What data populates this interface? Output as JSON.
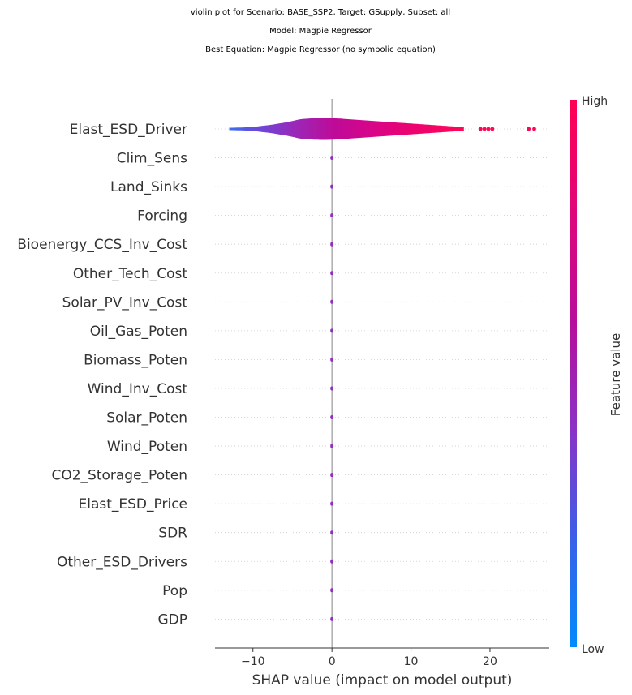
{
  "titles": [
    "violin plot for Scenario: BASE_SSP2, Target: GSupply, Subset: all",
    "Model: Magpie Regressor",
    "Best Equation: Magpie Regressor (no symbolic equation)"
  ],
  "chart_data": {
    "type": "violin",
    "xlabel": "SHAP value (impact on model output)",
    "ylabel": "",
    "xlim": [
      -14.8,
      27.5
    ],
    "xticks": [
      -10,
      0,
      10,
      20
    ],
    "xtick_labels": [
      "−10",
      "0",
      "10",
      "20"
    ],
    "grid": "dotted horizontal rows",
    "colorbar": {
      "label": "Feature value",
      "high_label": "High",
      "low_label": "Low",
      "colors": [
        "#008bfb",
        "#3b5fe8",
        "#8a32c5",
        "#b90c9a",
        "#e0067a",
        "#ff0052"
      ]
    },
    "features": [
      {
        "name": "Elast_ESD_Driver",
        "min": -13.0,
        "max": 16.7,
        "outliers": [
          18.8,
          19.3,
          19.8,
          20.3,
          24.9,
          25.6
        ]
      },
      {
        "name": "Clim_Sens",
        "min": -0.2,
        "max": 0.2,
        "outliers": []
      },
      {
        "name": "Land_Sinks",
        "min": -0.2,
        "max": 0.2,
        "outliers": []
      },
      {
        "name": "Forcing",
        "min": -0.2,
        "max": 0.2,
        "outliers": []
      },
      {
        "name": "Bioenergy_CCS_Inv_Cost",
        "min": -0.2,
        "max": 0.2,
        "outliers": []
      },
      {
        "name": "Other_Tech_Cost",
        "min": -0.2,
        "max": 0.2,
        "outliers": []
      },
      {
        "name": "Solar_PV_Inv_Cost",
        "min": -0.2,
        "max": 0.2,
        "outliers": []
      },
      {
        "name": "Oil_Gas_Poten",
        "min": -0.2,
        "max": 0.2,
        "outliers": []
      },
      {
        "name": "Biomass_Poten",
        "min": -0.2,
        "max": 0.2,
        "outliers": []
      },
      {
        "name": "Wind_Inv_Cost",
        "min": -0.2,
        "max": 0.2,
        "outliers": []
      },
      {
        "name": "Solar_Poten",
        "min": -0.2,
        "max": 0.2,
        "outliers": []
      },
      {
        "name": "Wind_Poten",
        "min": -0.2,
        "max": 0.2,
        "outliers": []
      },
      {
        "name": "CO2_Storage_Poten",
        "min": -0.2,
        "max": 0.2,
        "outliers": []
      },
      {
        "name": "Elast_ESD_Price",
        "min": -0.2,
        "max": 0.2,
        "outliers": []
      },
      {
        "name": "SDR",
        "min": -0.2,
        "max": 0.2,
        "outliers": []
      },
      {
        "name": "Other_ESD_Drivers",
        "min": -0.2,
        "max": 0.2,
        "outliers": []
      },
      {
        "name": "Pop",
        "min": -0.2,
        "max": 0.2,
        "outliers": []
      },
      {
        "name": "GDP",
        "min": -0.2,
        "max": 0.2,
        "outliers": []
      }
    ]
  }
}
